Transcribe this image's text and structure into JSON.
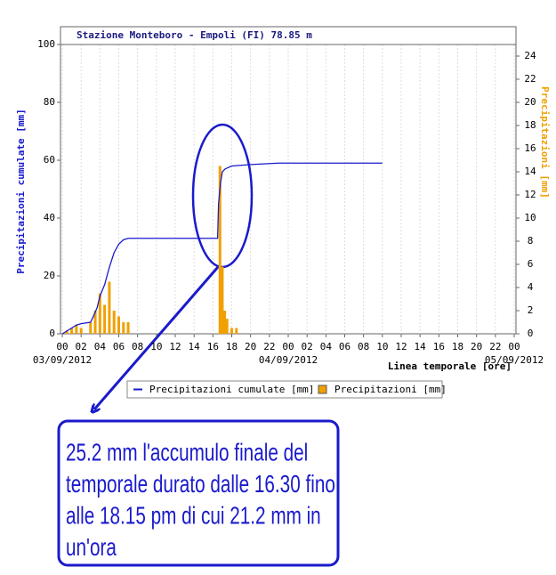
{
  "chart_data": {
    "type": "combo",
    "title": "Stazione Monteboro - Empoli (FI) 78.85 m",
    "ylabel": "Precipitazioni cumulate [mm]",
    "y2label": "Precipitazioni [mm]",
    "xlabel": "Linea temporale [ore]",
    "xlim": [
      0,
      48
    ],
    "xticks": [
      {
        "value": 0,
        "label": "00"
      },
      {
        "value": 2,
        "label": "02"
      },
      {
        "value": 4,
        "label": "04"
      },
      {
        "value": 6,
        "label": "06"
      },
      {
        "value": 8,
        "label": "08"
      },
      {
        "value": 10,
        "label": "10"
      },
      {
        "value": 12,
        "label": "12"
      },
      {
        "value": 14,
        "label": "14"
      },
      {
        "value": 16,
        "label": "16"
      },
      {
        "value": 18,
        "label": "18"
      },
      {
        "value": 20,
        "label": "20"
      },
      {
        "value": 22,
        "label": "22"
      },
      {
        "value": 24,
        "label": "00"
      },
      {
        "value": 26,
        "label": "02"
      },
      {
        "value": 28,
        "label": "04"
      },
      {
        "value": 30,
        "label": "06"
      },
      {
        "value": 32,
        "label": "08"
      },
      {
        "value": 34,
        "label": "10"
      },
      {
        "value": 36,
        "label": "12"
      },
      {
        "value": 38,
        "label": "14"
      },
      {
        "value": 40,
        "label": "16"
      },
      {
        "value": 42,
        "label": "18"
      },
      {
        "value": 44,
        "label": "20"
      },
      {
        "value": 46,
        "label": "22"
      },
      {
        "value": 48,
        "label": "00"
      }
    ],
    "dates": [
      {
        "value": 0,
        "label": "03/09/2012"
      },
      {
        "value": 24,
        "label": "04/09/2012"
      },
      {
        "value": 48,
        "label": "05/09/2012"
      }
    ],
    "ylim": [
      0,
      100
    ],
    "yticks": [
      0,
      20,
      40,
      60,
      80,
      100
    ],
    "y2lim": [
      0,
      25
    ],
    "y2ticks": [
      0,
      2,
      4,
      6,
      8,
      10,
      12,
      14,
      16,
      18,
      20,
      22,
      24
    ],
    "grid": true,
    "series": [
      {
        "name": "Precipitazioni cumulate [mm]",
        "type": "line",
        "color": "#1a1acc",
        "x": [
          0,
          0.5,
          1,
          1.5,
          2,
          3,
          3.3,
          3.7,
          4,
          4.5,
          5,
          5.5,
          6,
          6.5,
          7,
          16.5,
          16.6,
          16.8,
          17,
          17.3,
          18,
          20,
          23,
          34
        ],
        "values": [
          0,
          1,
          2,
          3,
          3.5,
          4,
          6,
          9,
          13,
          17,
          23,
          28,
          31,
          32.5,
          33,
          33,
          45,
          52,
          56,
          57,
          58,
          58.5,
          59,
          59
        ]
      },
      {
        "name": "Precipitazioni [mm]",
        "type": "bar",
        "color": "#f0a000",
        "axis": "y2",
        "x": [
          0.5,
          1,
          1.5,
          2,
          3,
          3.5,
          4,
          4.5,
          5,
          5.5,
          6,
          6.5,
          7,
          16.75,
          17,
          17.25,
          17.5,
          18,
          18.5
        ],
        "values": [
          0.3,
          0.5,
          0.8,
          0.5,
          1,
          2,
          3.5,
          2.5,
          4.5,
          2,
          1.5,
          1,
          1,
          14.5,
          5.8,
          2,
          1.3,
          0.5,
          0.5
        ]
      }
    ],
    "annotation": [
      "25.2 mm l'accumulo finale del",
      "temporale durato dalle 16.30 fino",
      "alle 18.15 pm di cui 21.2 mm in",
      "un'ora"
    ]
  }
}
